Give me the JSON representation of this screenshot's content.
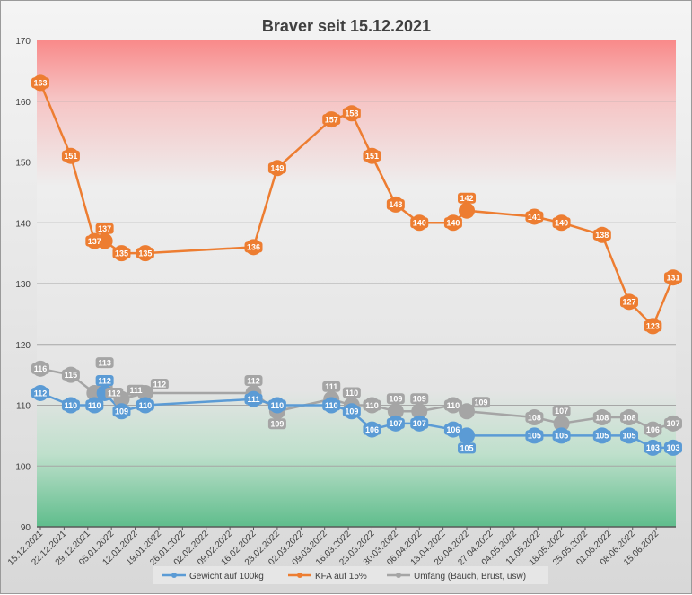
{
  "chart_data": {
    "type": "line",
    "title": "Braver seit 15.12.2021",
    "xlabel": "",
    "ylabel": "",
    "ylim": [
      90,
      170
    ],
    "yticks": [
      90,
      100,
      110,
      120,
      130,
      140,
      150,
      160,
      170
    ],
    "xtick_labels": [
      "15.12.2021",
      "22.12.2021",
      "29.12.2021",
      "05.01.2022",
      "12.01.2022",
      "19.01.2022",
      "26.01.2022",
      "02.02.2022",
      "09.02.2022",
      "16.02.2022",
      "23.02.2022",
      "02.03.2022",
      "09.03.2022",
      "16.03.2022",
      "23.03.2022",
      "30.03.2022",
      "06.04.2022",
      "13.04.2022",
      "20.04.2022",
      "27.04.2022",
      "04.05.2022",
      "11.05.2022",
      "18.05.2022",
      "25.05.2022",
      "01.06.2022",
      "08.06.2022",
      "15.06.2022"
    ],
    "x_days": [
      0,
      9,
      16,
      19,
      24,
      31,
      63,
      70,
      86,
      92,
      98,
      105,
      112,
      122,
      126,
      146,
      154,
      166,
      174,
      181,
      187
    ],
    "legend_position": "bottom",
    "grid": true,
    "series": [
      {
        "name": "Gewicht auf 100kg",
        "color": "#5b9bd5",
        "values": [
          112,
          110,
          110,
          112,
          109,
          110,
          111,
          110,
          110,
          109,
          106,
          107,
          107,
          106,
          105,
          105,
          105,
          105,
          105,
          103,
          103
        ]
      },
      {
        "name": "KFA auf 15%",
        "color": "#ed7d31",
        "values": [
          163,
          151,
          137,
          137,
          135,
          135,
          136,
          149,
          157,
          158,
          151,
          143,
          140,
          140,
          142,
          141,
          140,
          138,
          127,
          123,
          131
        ]
      },
      {
        "name": "Umfang (Bauch, Brust, usw)",
        "color": "#a5a5a5",
        "values": [
          116,
          115,
          112,
          113,
          111,
          112,
          112,
          109,
          111,
          110,
          110,
          109,
          109,
          110,
          109,
          108,
          107,
          108,
          108,
          106,
          107
        ]
      }
    ]
  }
}
